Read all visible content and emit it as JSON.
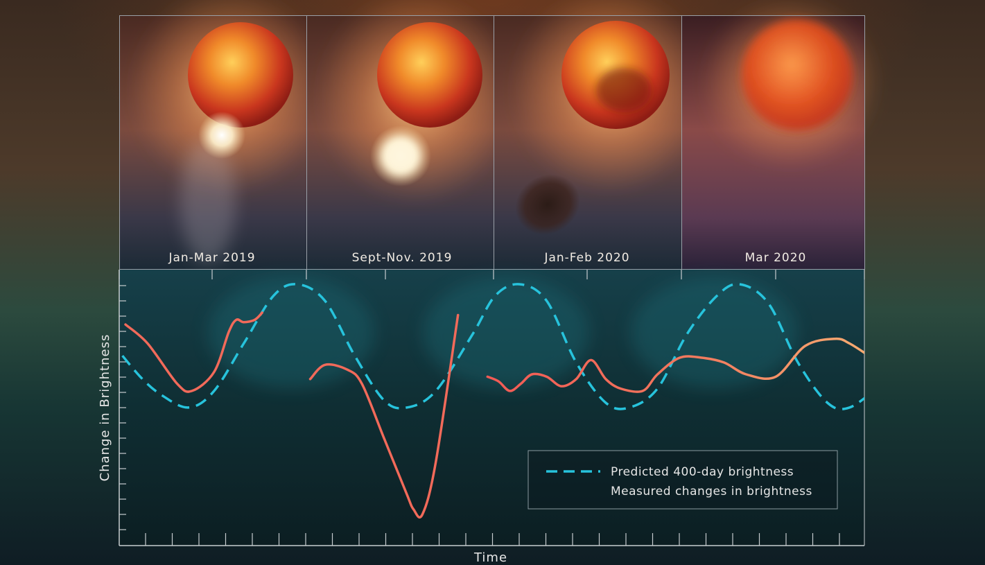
{
  "panels": [
    {
      "label": "Jan-Mar 2019",
      "state": "bright-spot"
    },
    {
      "label": "Sept-Nov. 2019",
      "state": "gas-ejection"
    },
    {
      "label": "Jan-Feb 2020",
      "state": "dust-cloud"
    },
    {
      "label": "Mar 2020",
      "state": "obscured"
    }
  ],
  "colors": {
    "predicted": "#27c3dc",
    "measured": "#f26a5a",
    "measured_end": "#f5a46e",
    "plot_bg": "#0f2a2e"
  },
  "chart_data": {
    "type": "line",
    "xlabel": "Time",
    "ylabel": "Change in Brightness",
    "xlim": [
      0,
      100
    ],
    "ylim": [
      0,
      100
    ],
    "tick_labels_shown": false,
    "grid": false,
    "legend_position": "bottom-right",
    "series": [
      {
        "name": "Predicted 400-day brightness",
        "style": "dashed",
        "x": [
          -2,
          2,
          5,
          8.6,
          12,
          16,
          20,
          23.2,
          27,
          31,
          35,
          38.1,
          42,
          47,
          50,
          53.3,
          57,
          61,
          65,
          68.2,
          72,
          76,
          80,
          83.1,
          87,
          91,
          95,
          98,
          102
        ],
        "y": [
          76,
          61,
          53,
          48,
          55,
          75,
          95,
          100,
          93,
          70,
          51,
          48,
          55,
          79,
          95,
          100,
          93,
          67,
          50,
          48,
          56,
          79,
          95,
          100,
          92,
          67,
          50,
          48,
          57
        ]
      },
      {
        "name": "Measured changes in brightness",
        "style": "solid",
        "segments": [
          {
            "x": [
              0,
              3,
              7,
              9,
              12,
              14,
              15,
              16,
              17.5,
              18.5
            ],
            "y": [
              83,
              75,
              58,
              55,
              63,
              80,
              85,
              84,
              85,
              88
            ]
          },
          {
            "x": [
              25,
              27,
              30,
              32,
              35,
              38,
              39,
              40.2,
              42,
              45
            ],
            "y": [
              60,
              66,
              64,
              58,
              35,
              12,
              5,
              3,
              25,
              87
            ]
          },
          {
            "x": [
              49,
              50.5,
              52,
              53.5,
              55,
              57,
              59,
              61,
              63,
              65,
              67,
              70,
              72,
              75,
              78,
              81,
              84,
              88,
              92,
              96,
              98,
              101
            ],
            "y": [
              61,
              59,
              55,
              58,
              62,
              61,
              57,
              60,
              68,
              60,
              56,
              55,
              62,
              69,
              69,
              67,
              62,
              61,
              74,
              77,
              75,
              69
            ]
          }
        ]
      }
    ]
  }
}
